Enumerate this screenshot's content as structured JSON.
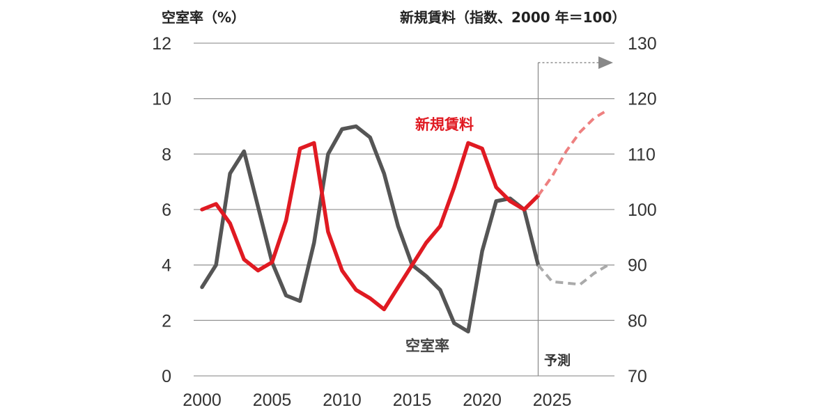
{
  "chart_data": {
    "type": "line",
    "y_left_title": "空室率（%）",
    "y_right_title": "新規賃料（指数、2000 年＝100）",
    "xlim": [
      2000,
      2029
    ],
    "x_ticks": [
      "2000",
      "2005",
      "2010",
      "2015",
      "2020",
      "2025"
    ],
    "y_left": {
      "min": 0,
      "max": 12,
      "ticks": [
        "0",
        "2",
        "4",
        "6",
        "8",
        "10",
        "12"
      ]
    },
    "y_right": {
      "min": 70,
      "max": 130,
      "ticks": [
        "70",
        "80",
        "90",
        "100",
        "110",
        "120",
        "130"
      ]
    },
    "grid": true,
    "forecast_start": 2024,
    "forecast_label": "予測",
    "series": [
      {
        "name": "空室率",
        "axis": "left",
        "color": "#555555",
        "forecast_color": "#aaaaaa",
        "x": [
          2000,
          2001,
          2002,
          2003,
          2004,
          2005,
          2006,
          2007,
          2008,
          2009,
          2010,
          2011,
          2012,
          2013,
          2014,
          2015,
          2016,
          2017,
          2018,
          2019,
          2020,
          2021,
          2022,
          2023,
          2024
        ],
        "values": [
          3.2,
          4.0,
          7.3,
          8.1,
          6.1,
          4.1,
          2.9,
          2.7,
          4.8,
          8.0,
          8.9,
          9.0,
          8.6,
          7.3,
          5.4,
          4.0,
          3.6,
          3.1,
          1.9,
          1.6,
          4.5,
          6.3,
          6.4,
          6.0,
          4.0
        ],
        "forecast_x": [
          2024,
          2025,
          2026,
          2027,
          2028,
          2029
        ],
        "forecast_values": [
          4.0,
          3.4,
          3.35,
          3.3,
          3.7,
          4.0
        ]
      },
      {
        "name": "新規賃料",
        "axis": "right",
        "color": "#e01a22",
        "forecast_color": "#ee8080",
        "x": [
          2000,
          2001,
          2002,
          2003,
          2004,
          2005,
          2006,
          2007,
          2008,
          2009,
          2010,
          2011,
          2012,
          2013,
          2014,
          2015,
          2016,
          2017,
          2018,
          2019,
          2020,
          2021,
          2022,
          2023,
          2024
        ],
        "values": [
          100,
          101,
          97.5,
          91,
          89,
          90.5,
          98,
          111,
          112,
          96,
          89,
          85.5,
          84,
          82,
          86,
          90,
          94,
          97,
          104,
          112,
          111,
          104,
          101.5,
          100,
          102.5
        ],
        "forecast_x": [
          2024,
          2025,
          2026,
          2027,
          2028,
          2029
        ],
        "forecast_values": [
          102.5,
          106,
          110.5,
          114,
          116.5,
          118
        ]
      }
    ]
  }
}
